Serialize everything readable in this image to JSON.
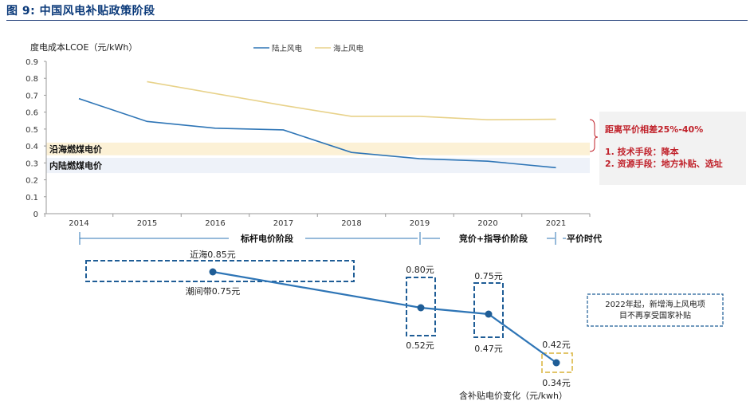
{
  "figure_title": "图 9: 中国风电补贴政策阶段",
  "chart_data": {
    "type": "line",
    "ylabel": "度电成本LCOE（元/kWh）",
    "ylim": [
      0,
      0.9
    ],
    "yticks": [
      "0",
      "0.1",
      "0.2",
      "0.3",
      "0.4",
      "0.5",
      "0.6",
      "0.7",
      "0.8",
      "0.9"
    ],
    "categories": [
      "2014",
      "2015",
      "2016",
      "2017",
      "2018",
      "2019",
      "2020",
      "2021"
    ],
    "series": [
      {
        "name": "陆上风电",
        "color": "#2e75b6",
        "values": [
          0.68,
          0.545,
          0.505,
          0.495,
          0.362,
          0.325,
          0.31,
          0.272
        ]
      },
      {
        "name": "海上风电",
        "color": "#e8d28a",
        "values": [
          null,
          0.78,
          null,
          0.64,
          0.575,
          0.575,
          0.555,
          0.558
        ]
      }
    ],
    "legend_position": "top",
    "grid": false,
    "bands": [
      {
        "label": "沿海燃煤电价",
        "from": 0.345,
        "to": 0.42,
        "color": "#fcf1d6"
      },
      {
        "label": "内陆燃煤电价",
        "from": 0.24,
        "to": 0.33,
        "color": "#eef2f9"
      }
    ]
  },
  "annotation_box": {
    "title": "距离平价相差25%-40%",
    "lines": [
      "1. 技术手段：降本",
      "2. 资源手段：地方补贴、选址"
    ]
  },
  "phases": [
    {
      "label": "标杆电价阶段"
    },
    {
      "label": "竞价+指导价阶段"
    },
    {
      "label": "平价时代"
    }
  ],
  "subsidy_chart": {
    "caption": "含补贴电价变化（元/kwh）",
    "note": [
      "2022年起，新增海上风电项",
      "目不再享受国家补贴"
    ],
    "points": [
      {
        "year": "2014-2018",
        "value_high": 0.85,
        "value_low": 0.75,
        "label_high": "近海0.85元",
        "label_low": "潮间带0.75元"
      },
      {
        "year": "2019",
        "value_high": 0.8,
        "value_low": 0.52,
        "label_high": "0.80元",
        "label_low": "0.52元"
      },
      {
        "year": "2020",
        "value_high": 0.75,
        "value_low": 0.47,
        "label_high": "0.75元",
        "label_low": "0.47元"
      },
      {
        "year": "2021",
        "value_high": 0.42,
        "value_low": 0.34,
        "label_high": "0.42元",
        "label_low": "0.34元"
      }
    ]
  }
}
